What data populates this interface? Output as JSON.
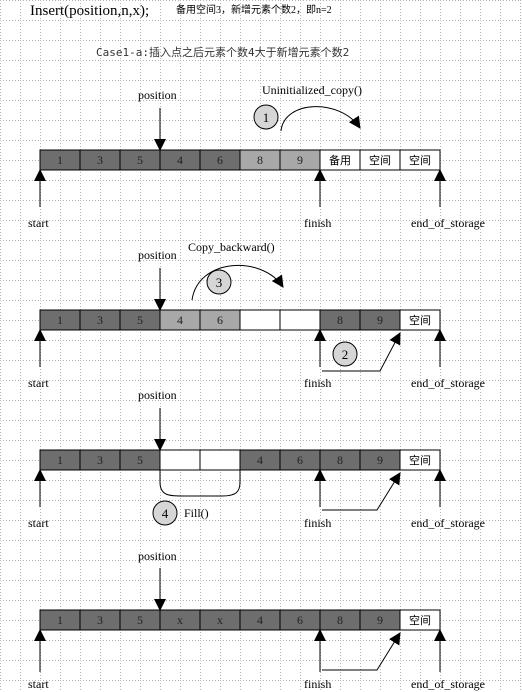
{
  "title": {
    "main": "Insert(position,n,x);",
    "note": "备用空间3，新增元素个数2，即n=2"
  },
  "subtitle": "Case1-a:插入点之后元素个数4大于新增元素个数2",
  "labels": {
    "position": "position",
    "start": "start",
    "finish": "finish",
    "end_of_storage": "end_of_storage"
  },
  "steps": [
    {
      "num": "1",
      "label": "Uninitialized_copy()"
    },
    {
      "num": "2",
      "label": ""
    },
    {
      "num": "3",
      "label": "Copy_backward()"
    },
    {
      "num": "4",
      "label": "Fill()"
    }
  ],
  "colors": {
    "dark": "#6e6e6e",
    "light": "#a8a8a8",
    "empty": "#ffffff",
    "grid": "#b4b4b4"
  },
  "rows": [
    {
      "cells": [
        {
          "text": "1",
          "fill": "dark"
        },
        {
          "text": "3",
          "fill": "dark"
        },
        {
          "text": "5",
          "fill": "dark"
        },
        {
          "text": "4",
          "fill": "dark"
        },
        {
          "text": "6",
          "fill": "dark"
        },
        {
          "text": "8",
          "fill": "light"
        },
        {
          "text": "9",
          "fill": "light"
        },
        {
          "text": "备用",
          "fill": "empty"
        },
        {
          "text": "空间",
          "fill": "empty"
        },
        {
          "text": "空间",
          "fill": "empty"
        }
      ]
    },
    {
      "cells": [
        {
          "text": "1",
          "fill": "dark"
        },
        {
          "text": "3",
          "fill": "dark"
        },
        {
          "text": "5",
          "fill": "dark"
        },
        {
          "text": "4",
          "fill": "light"
        },
        {
          "text": "6",
          "fill": "light"
        },
        {
          "text": "",
          "fill": "empty"
        },
        {
          "text": "",
          "fill": "empty"
        },
        {
          "text": "8",
          "fill": "dark"
        },
        {
          "text": "9",
          "fill": "dark"
        },
        {
          "text": "空间",
          "fill": "empty"
        }
      ]
    },
    {
      "cells": [
        {
          "text": "1",
          "fill": "dark"
        },
        {
          "text": "3",
          "fill": "dark"
        },
        {
          "text": "5",
          "fill": "dark"
        },
        {
          "text": "",
          "fill": "empty"
        },
        {
          "text": "",
          "fill": "empty"
        },
        {
          "text": "4",
          "fill": "dark"
        },
        {
          "text": "6",
          "fill": "dark"
        },
        {
          "text": "8",
          "fill": "dark"
        },
        {
          "text": "9",
          "fill": "dark"
        },
        {
          "text": "空间",
          "fill": "empty"
        }
      ]
    },
    {
      "cells": [
        {
          "text": "1",
          "fill": "dark"
        },
        {
          "text": "3",
          "fill": "dark"
        },
        {
          "text": "5",
          "fill": "dark"
        },
        {
          "text": "x",
          "fill": "dark"
        },
        {
          "text": "x",
          "fill": "dark"
        },
        {
          "text": "4",
          "fill": "dark"
        },
        {
          "text": "6",
          "fill": "dark"
        },
        {
          "text": "8",
          "fill": "dark"
        },
        {
          "text": "9",
          "fill": "dark"
        },
        {
          "text": "空间",
          "fill": "empty"
        }
      ]
    }
  ]
}
